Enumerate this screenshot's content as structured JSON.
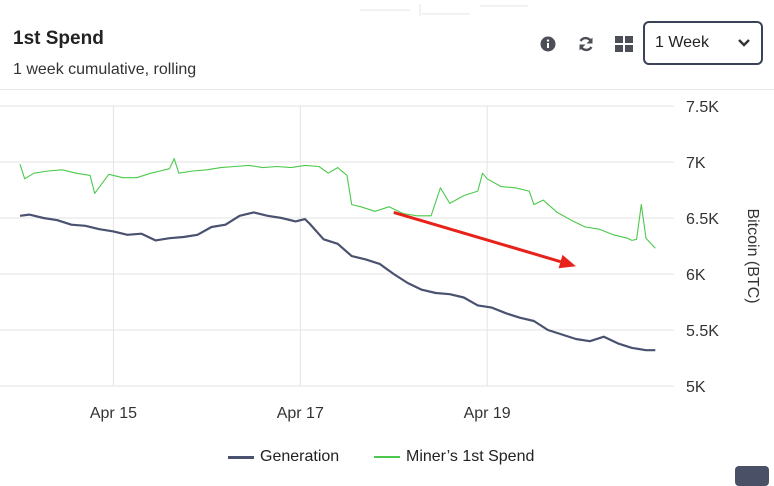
{
  "header": {
    "title": "1st Spend",
    "subtitle": "1 week cumulative, rolling"
  },
  "toolbar": {
    "info_icon": "info-icon",
    "refresh_icon": "refresh-icon",
    "grid_icon": "grid-icon",
    "period_select": "1 Week"
  },
  "colors": {
    "generation": "#4a5270",
    "spend": "#4cc94c",
    "arrow": "#e8221a",
    "grid": "#e3e3e3"
  },
  "chart_data": {
    "type": "line",
    "ylabel": "Bitcoin (BTC)",
    "y_axis_position": "right",
    "ylim": [
      5000,
      7500
    ],
    "yticks": [
      5000,
      5500,
      6000,
      6500,
      7000,
      7500
    ],
    "ytick_labels": [
      "5K",
      "5.5K",
      "6K",
      "6.5K",
      "7K",
      "7.5K"
    ],
    "xlim": [
      0,
      7
    ],
    "xticks": [
      1,
      3,
      5
    ],
    "xtick_labels": [
      "Apr 15",
      "Apr 17",
      "Apr 19"
    ],
    "grid": true,
    "legend": "bottom",
    "series": [
      {
        "name": "Generation",
        "x": [
          0,
          0.1,
          0.25,
          0.4,
          0.55,
          0.7,
          0.85,
          1.0,
          1.15,
          1.3,
          1.45,
          1.6,
          1.75,
          1.9,
          2.05,
          2.2,
          2.35,
          2.5,
          2.65,
          2.8,
          2.95,
          3.05,
          3.1,
          3.25,
          3.4,
          3.55,
          3.7,
          3.85,
          4.0,
          4.15,
          4.3,
          4.45,
          4.6,
          4.75,
          4.9,
          5.05,
          5.2,
          5.35,
          5.5,
          5.65,
          5.8,
          5.95,
          6.1,
          6.25,
          6.4,
          6.55,
          6.7,
          6.8
        ],
        "values": [
          6520,
          6530,
          6500,
          6480,
          6440,
          6430,
          6400,
          6380,
          6350,
          6360,
          6300,
          6320,
          6330,
          6350,
          6420,
          6440,
          6520,
          6550,
          6520,
          6500,
          6470,
          6490,
          6450,
          6310,
          6270,
          6160,
          6130,
          6090,
          6000,
          5920,
          5860,
          5830,
          5820,
          5790,
          5720,
          5700,
          5650,
          5610,
          5580,
          5500,
          5460,
          5420,
          5400,
          5440,
          5380,
          5340,
          5320,
          5320
        ]
      },
      {
        "name": "Miner’s 1st Spend",
        "x": [
          0,
          0.05,
          0.15,
          0.3,
          0.45,
          0.6,
          0.75,
          0.8,
          0.95,
          1.1,
          1.25,
          1.4,
          1.5,
          1.6,
          1.65,
          1.7,
          1.85,
          2.0,
          2.15,
          2.3,
          2.45,
          2.6,
          2.75,
          2.9,
          3.05,
          3.2,
          3.3,
          3.4,
          3.5,
          3.55,
          3.65,
          3.8,
          3.95,
          4.1,
          4.25,
          4.4,
          4.5,
          4.6,
          4.75,
          4.9,
          4.95,
          5.0,
          5.15,
          5.3,
          5.45,
          5.5,
          5.6,
          5.75,
          5.9,
          6.05,
          6.2,
          6.35,
          6.5,
          6.55,
          6.6,
          6.65,
          6.7,
          6.8
        ],
        "values": [
          6980,
          6850,
          6900,
          6920,
          6930,
          6900,
          6880,
          6720,
          6890,
          6860,
          6860,
          6900,
          6920,
          6940,
          7030,
          6900,
          6920,
          6930,
          6950,
          6960,
          6970,
          6950,
          6960,
          6950,
          6970,
          6960,
          6900,
          6950,
          6880,
          6620,
          6600,
          6560,
          6600,
          6540,
          6520,
          6520,
          6770,
          6630,
          6700,
          6740,
          6900,
          6850,
          6780,
          6770,
          6740,
          6620,
          6660,
          6550,
          6480,
          6420,
          6400,
          6350,
          6320,
          6300,
          6310,
          6620,
          6320,
          6230
        ]
      }
    ],
    "annotation_arrow": {
      "from": [
        4.0,
        6550
      ],
      "to": [
        5.95,
        6070
      ]
    }
  }
}
